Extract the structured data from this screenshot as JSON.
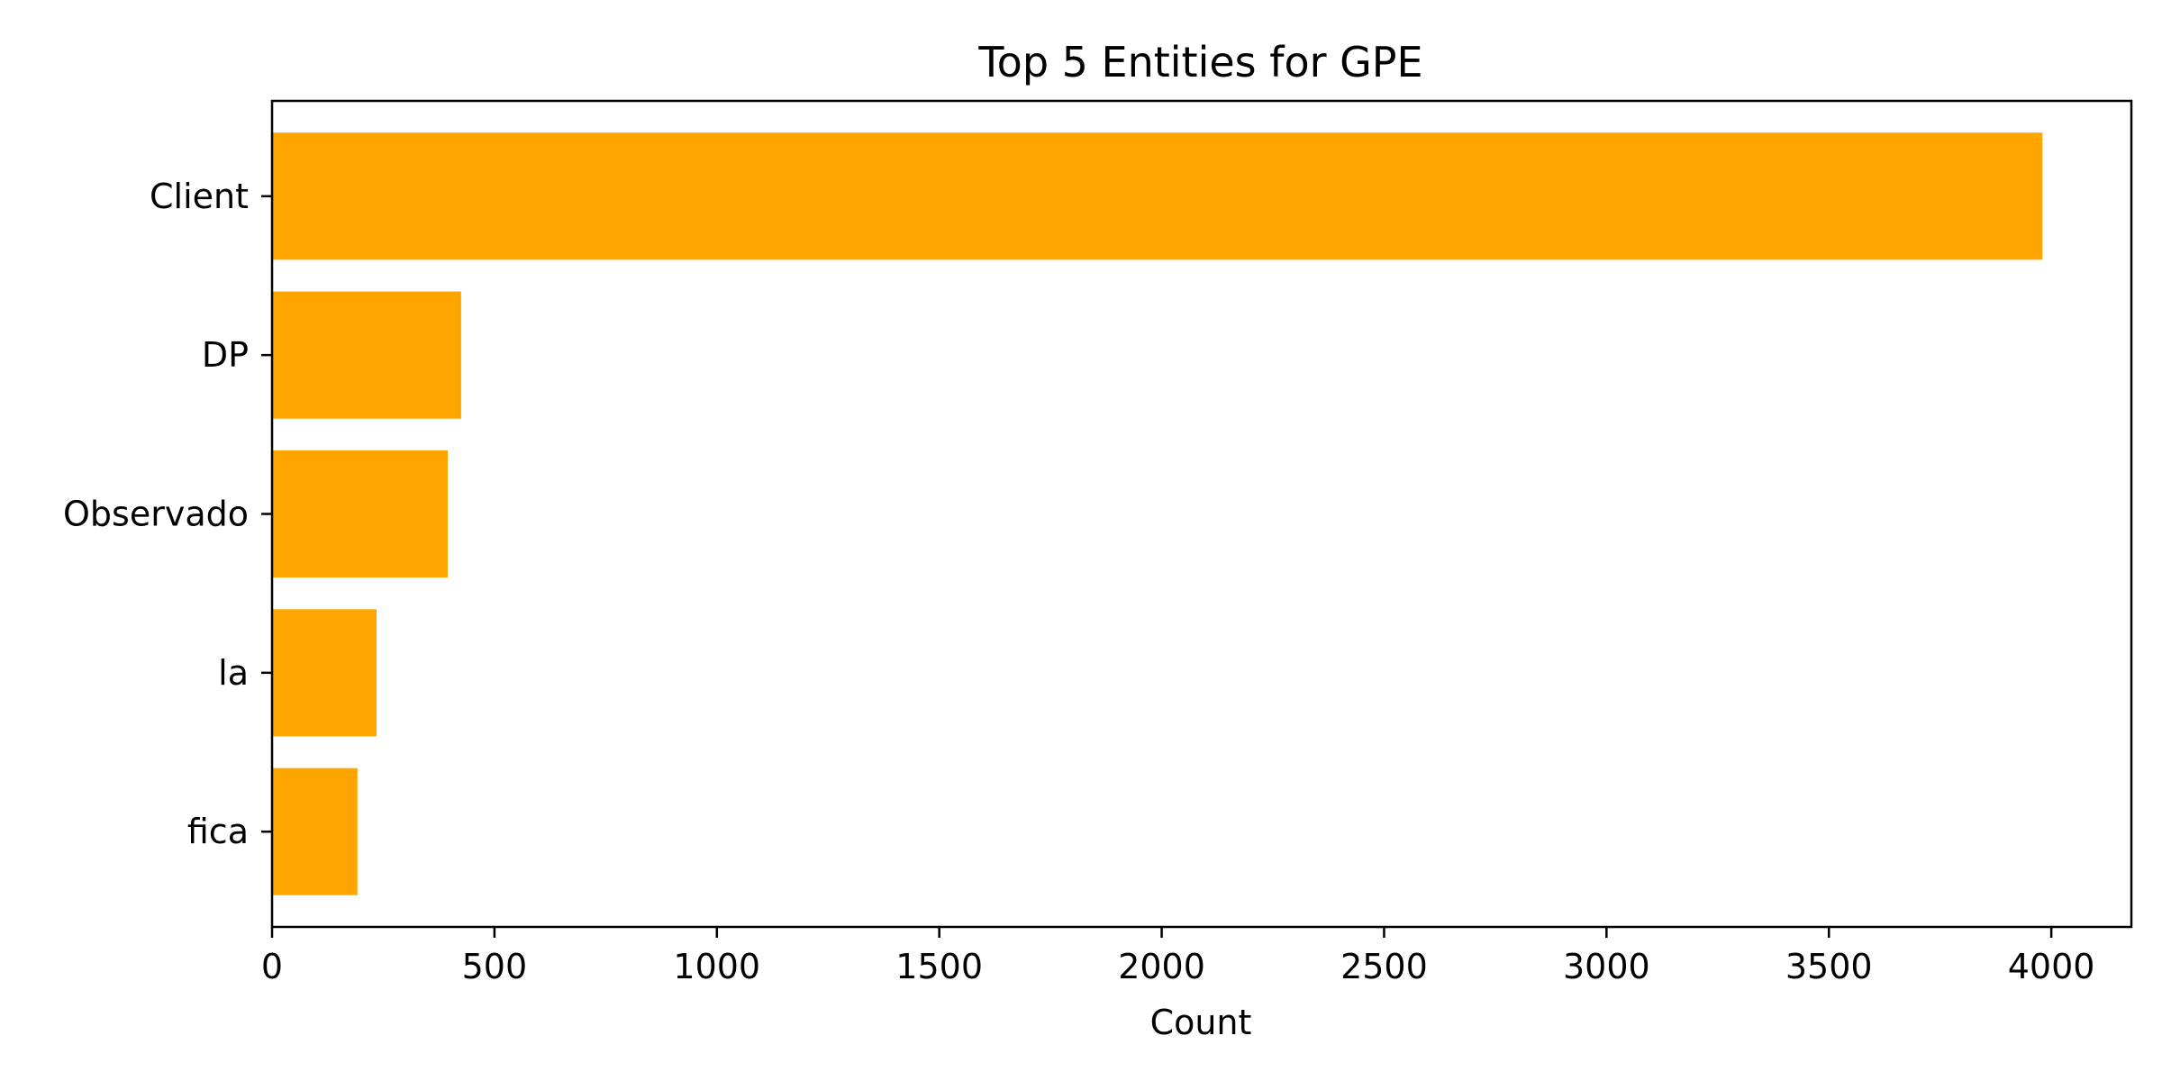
{
  "chart_data": {
    "type": "bar",
    "orientation": "horizontal",
    "title": "Top 5 Entities for GPE",
    "xlabel": "Count",
    "ylabel": "",
    "categories": [
      "Client",
      "DP",
      "Observado",
      "la",
      "fica"
    ],
    "values": [
      3980,
      425,
      395,
      235,
      192
    ],
    "xlim": [
      0,
      4180
    ],
    "xticks": [
      0,
      500,
      1000,
      1500,
      2000,
      2500,
      3000,
      3500,
      4000
    ],
    "bar_color": "#ffa500",
    "grid": false,
    "legend": "none"
  }
}
